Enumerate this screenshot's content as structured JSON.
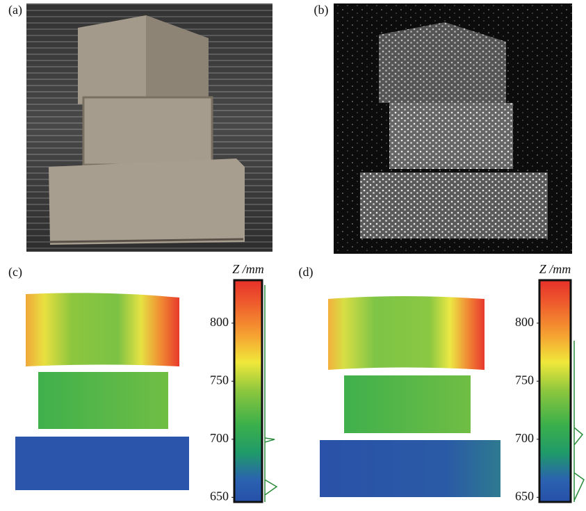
{
  "panels": [
    {
      "label": "(a)"
    },
    {
      "label": "(b)"
    },
    {
      "label": "(c)"
    },
    {
      "label": "(d)"
    }
  ],
  "colorbars": [
    {
      "label": "Z /mm",
      "zlim": [
        646,
        837
      ],
      "ticks": [
        650,
        700,
        750,
        800
      ]
    },
    {
      "label": "Z /mm",
      "zlim": [
        646,
        837
      ],
      "ticks": [
        650,
        700,
        750,
        800
      ]
    }
  ]
}
